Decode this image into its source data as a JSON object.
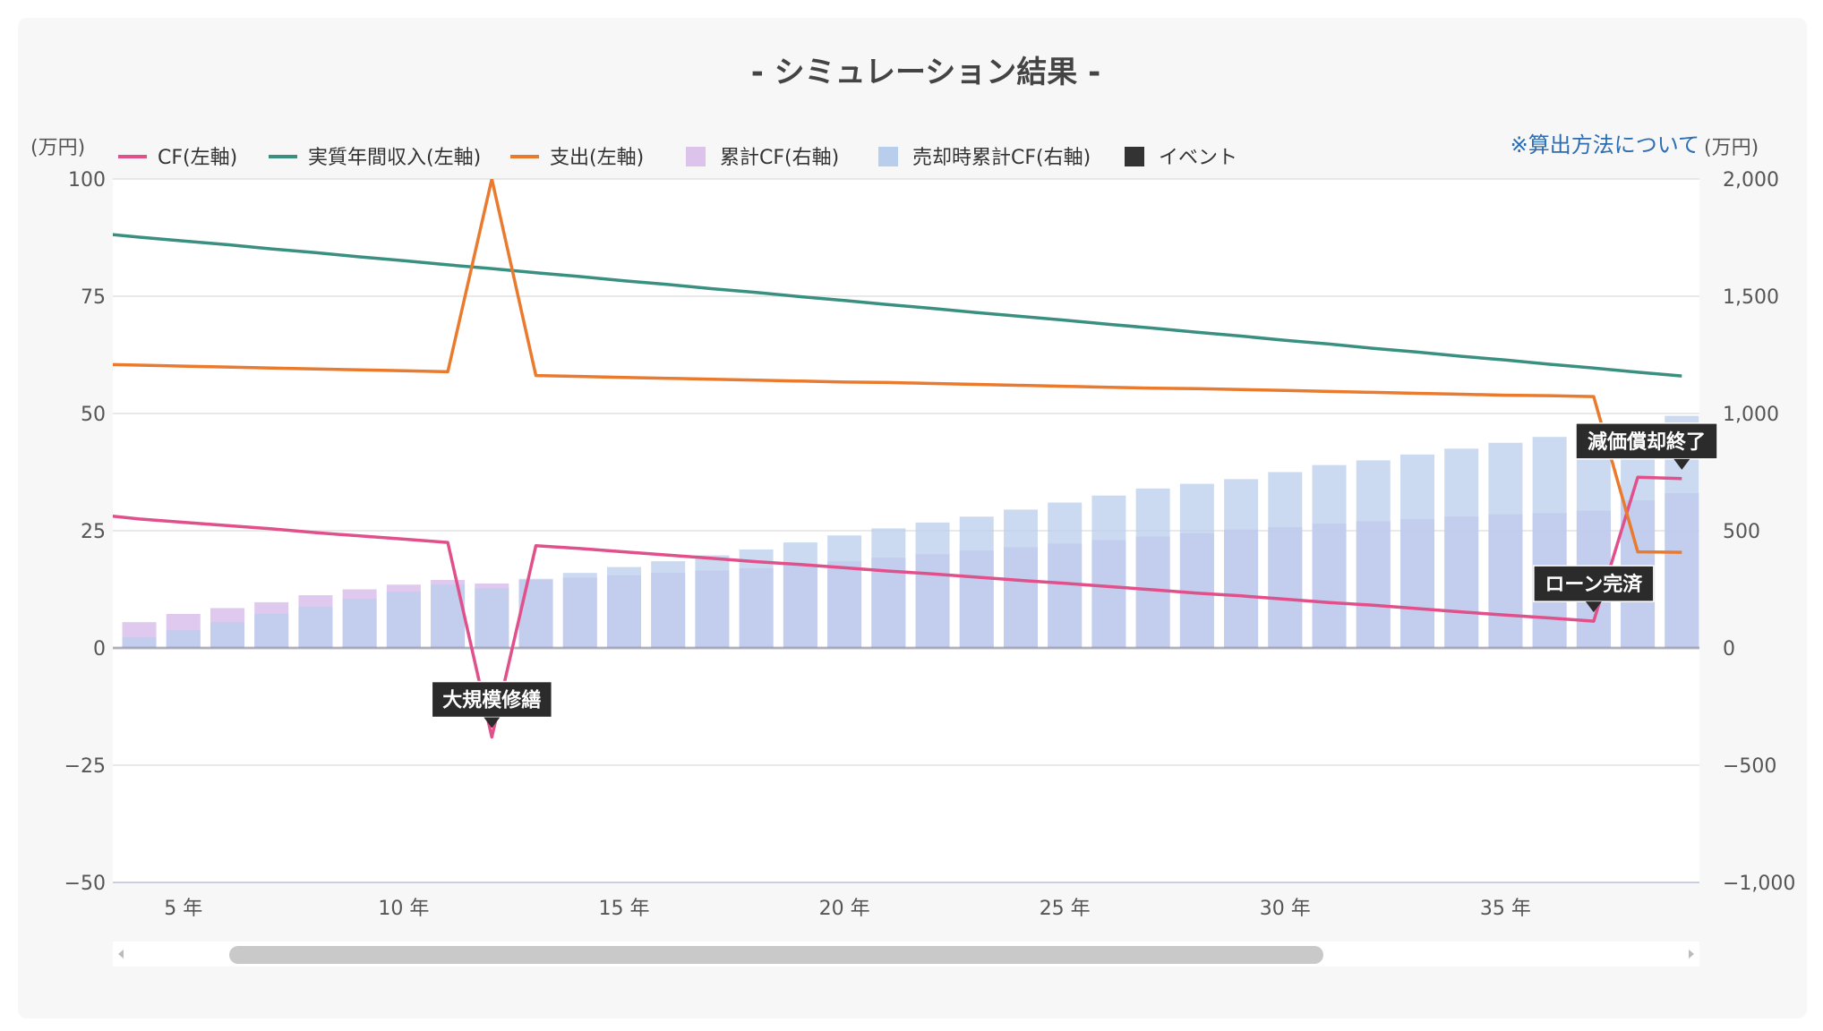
{
  "chart_data": {
    "type": "bar",
    "title": "- シミュレーション結果 -",
    "method_link": "※算出方法について",
    "left_unit": "(万円)",
    "right_unit": "(万円)",
    "left_axis": {
      "min": -50,
      "max": 100,
      "ticks": [
        -50,
        -25,
        0,
        25,
        50,
        75,
        100
      ],
      "tick_labels": [
        "−50",
        "−25",
        "0",
        "25",
        "50",
        "75",
        "100"
      ]
    },
    "right_axis": {
      "min": -1000,
      "max": 2000,
      "ticks": [
        -1000,
        -500,
        0,
        500,
        1000,
        1500,
        2000
      ],
      "tick_labels": [
        "−1,000",
        "−500",
        "0",
        "500",
        "1,000",
        "1,500",
        "2,000"
      ]
    },
    "x_visible": [
      3.4,
      39.4
    ],
    "x_ticks": [
      5,
      10,
      15,
      20,
      25,
      30,
      35
    ],
    "x_tick_labels": [
      "5 年",
      "10 年",
      "15 年",
      "20 年",
      "25 年",
      "30 年",
      "35 年"
    ],
    "years": [
      3,
      4,
      5,
      6,
      7,
      8,
      9,
      10,
      11,
      12,
      13,
      14,
      15,
      16,
      17,
      18,
      19,
      20,
      21,
      22,
      23,
      24,
      25,
      26,
      27,
      28,
      29,
      30,
      31,
      32,
      33,
      34,
      35,
      36,
      37,
      38,
      39
    ],
    "legend": [
      {
        "name": "CF(左軸)",
        "kind": "line",
        "color": "#e0508a"
      },
      {
        "name": "実質年間収入(左軸)",
        "kind": "line",
        "color": "#3a9080"
      },
      {
        "name": "支出(左軸)",
        "kind": "line",
        "color": "#e97a2e"
      },
      {
        "name": "累計CF(右軸)",
        "kind": "square",
        "color": "#dcc3ec"
      },
      {
        "name": "売却時累計CF(右軸)",
        "kind": "square",
        "color": "#b9cdec"
      },
      {
        "name": "イベント",
        "kind": "square",
        "color": "#333333"
      }
    ],
    "series": [
      {
        "name": "CF(左軸)",
        "axis": "left",
        "color": "#e0508a",
        "values": [
          28.5,
          27.5,
          26.8,
          26.1,
          25.4,
          24.6,
          23.9,
          23.2,
          22.5,
          -19,
          21.8,
          21.2,
          20.5,
          19.8,
          19.1,
          18.4,
          17.8,
          17.1,
          16.4,
          15.8,
          15.1,
          14.4,
          13.8,
          13.1,
          12.4,
          11.7,
          11.1,
          10.4,
          9.7,
          9.1,
          8.4,
          7.7,
          7.0,
          6.4,
          5.7,
          36.4,
          36.1
        ]
      },
      {
        "name": "実質年間収入(左軸)",
        "axis": "left",
        "color": "#3a9080",
        "values": [
          88.5,
          87.6,
          86.8,
          86.0,
          85.1,
          84.3,
          83.4,
          82.6,
          81.7,
          80.9,
          80.0,
          79.2,
          78.3,
          77.5,
          76.6,
          75.8,
          74.9,
          74.1,
          73.2,
          72.4,
          71.5,
          70.7,
          69.9,
          69.0,
          68.2,
          67.3,
          66.5,
          65.6,
          64.8,
          63.9,
          63.1,
          62.2,
          61.4,
          60.5,
          59.7,
          58.8,
          58.0
        ]
      },
      {
        "name": "支出(左軸)",
        "axis": "left",
        "color": "#e97a2e",
        "values": [
          60.5,
          60.3,
          60.1,
          59.9,
          59.7,
          59.5,
          59.3,
          59.1,
          58.9,
          100,
          58.1,
          57.9,
          57.7,
          57.5,
          57.3,
          57.1,
          56.9,
          56.7,
          56.6,
          56.4,
          56.2,
          56.0,
          55.8,
          55.6,
          55.4,
          55.3,
          55.1,
          54.9,
          54.7,
          54.5,
          54.3,
          54.1,
          53.9,
          53.8,
          53.6,
          20.5,
          20.4
        ]
      },
      {
        "name": "累計CF(右軸)",
        "axis": "right",
        "color": "#dcc3ec",
        "values": [
          80,
          110,
          145,
          170,
          195,
          225,
          250,
          270,
          290,
          275,
          290,
          300,
          310,
          320,
          330,
          340,
          355,
          370,
          385,
          400,
          415,
          430,
          445,
          460,
          475,
          490,
          505,
          515,
          530,
          540,
          550,
          560,
          570,
          575,
          585,
          630,
          660
        ]
      },
      {
        "name": "売却時累計CF(右軸)",
        "axis": "right",
        "color": "#b9cdec",
        "values": [
          10,
          45,
          75,
          110,
          145,
          175,
          210,
          240,
          270,
          255,
          295,
          320,
          345,
          370,
          395,
          420,
          450,
          480,
          510,
          535,
          560,
          590,
          620,
          650,
          680,
          700,
          720,
          750,
          780,
          800,
          825,
          850,
          875,
          900,
          920,
          960,
          990
        ]
      }
    ],
    "events": [
      {
        "label": "大規模修繕",
        "year": 12,
        "value": -19
      },
      {
        "label": "ローン完済",
        "year": 37,
        "value": 5.7
      },
      {
        "label": "減価償却終了",
        "year": 39,
        "value": 36.1
      }
    ]
  }
}
